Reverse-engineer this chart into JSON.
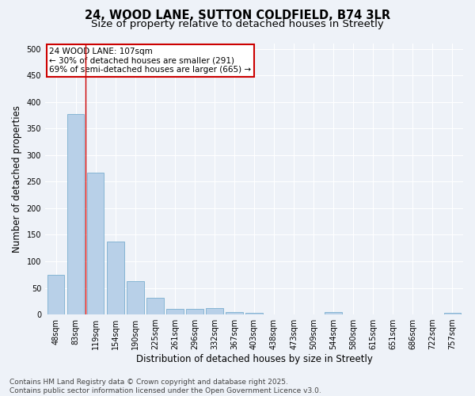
{
  "title": "24, WOOD LANE, SUTTON COLDFIELD, B74 3LR",
  "subtitle": "Size of property relative to detached houses in Streetly",
  "xlabel": "Distribution of detached houses by size in Streetly",
  "ylabel": "Number of detached properties",
  "categories": [
    "48sqm",
    "83sqm",
    "119sqm",
    "154sqm",
    "190sqm",
    "225sqm",
    "261sqm",
    "296sqm",
    "332sqm",
    "367sqm",
    "403sqm",
    "438sqm",
    "473sqm",
    "509sqm",
    "544sqm",
    "580sqm",
    "615sqm",
    "651sqm",
    "686sqm",
    "722sqm",
    "757sqm"
  ],
  "values": [
    75,
    378,
    267,
    137,
    62,
    31,
    10,
    10,
    12,
    5,
    3,
    0,
    0,
    0,
    4,
    0,
    0,
    0,
    0,
    0,
    3
  ],
  "bar_color": "#b8d0e8",
  "bar_edge_color": "#7aaecf",
  "vline_x": 1.5,
  "vline_color": "#cc0000",
  "annotation_title": "24 WOOD LANE: 107sqm",
  "annotation_line2": "← 30% of detached houses are smaller (291)",
  "annotation_line3": "69% of semi-detached houses are larger (665) →",
  "annotation_box_color": "#cc0000",
  "ylim": [
    0,
    510
  ],
  "yticks": [
    0,
    50,
    100,
    150,
    200,
    250,
    300,
    350,
    400,
    450,
    500
  ],
  "background_color": "#eef2f8",
  "footer_line1": "Contains HM Land Registry data © Crown copyright and database right 2025.",
  "footer_line2": "Contains public sector information licensed under the Open Government Licence v3.0.",
  "title_fontsize": 10.5,
  "subtitle_fontsize": 9.5,
  "axis_label_fontsize": 8.5,
  "tick_fontsize": 7,
  "annotation_fontsize": 7.5,
  "footer_fontsize": 6.5
}
